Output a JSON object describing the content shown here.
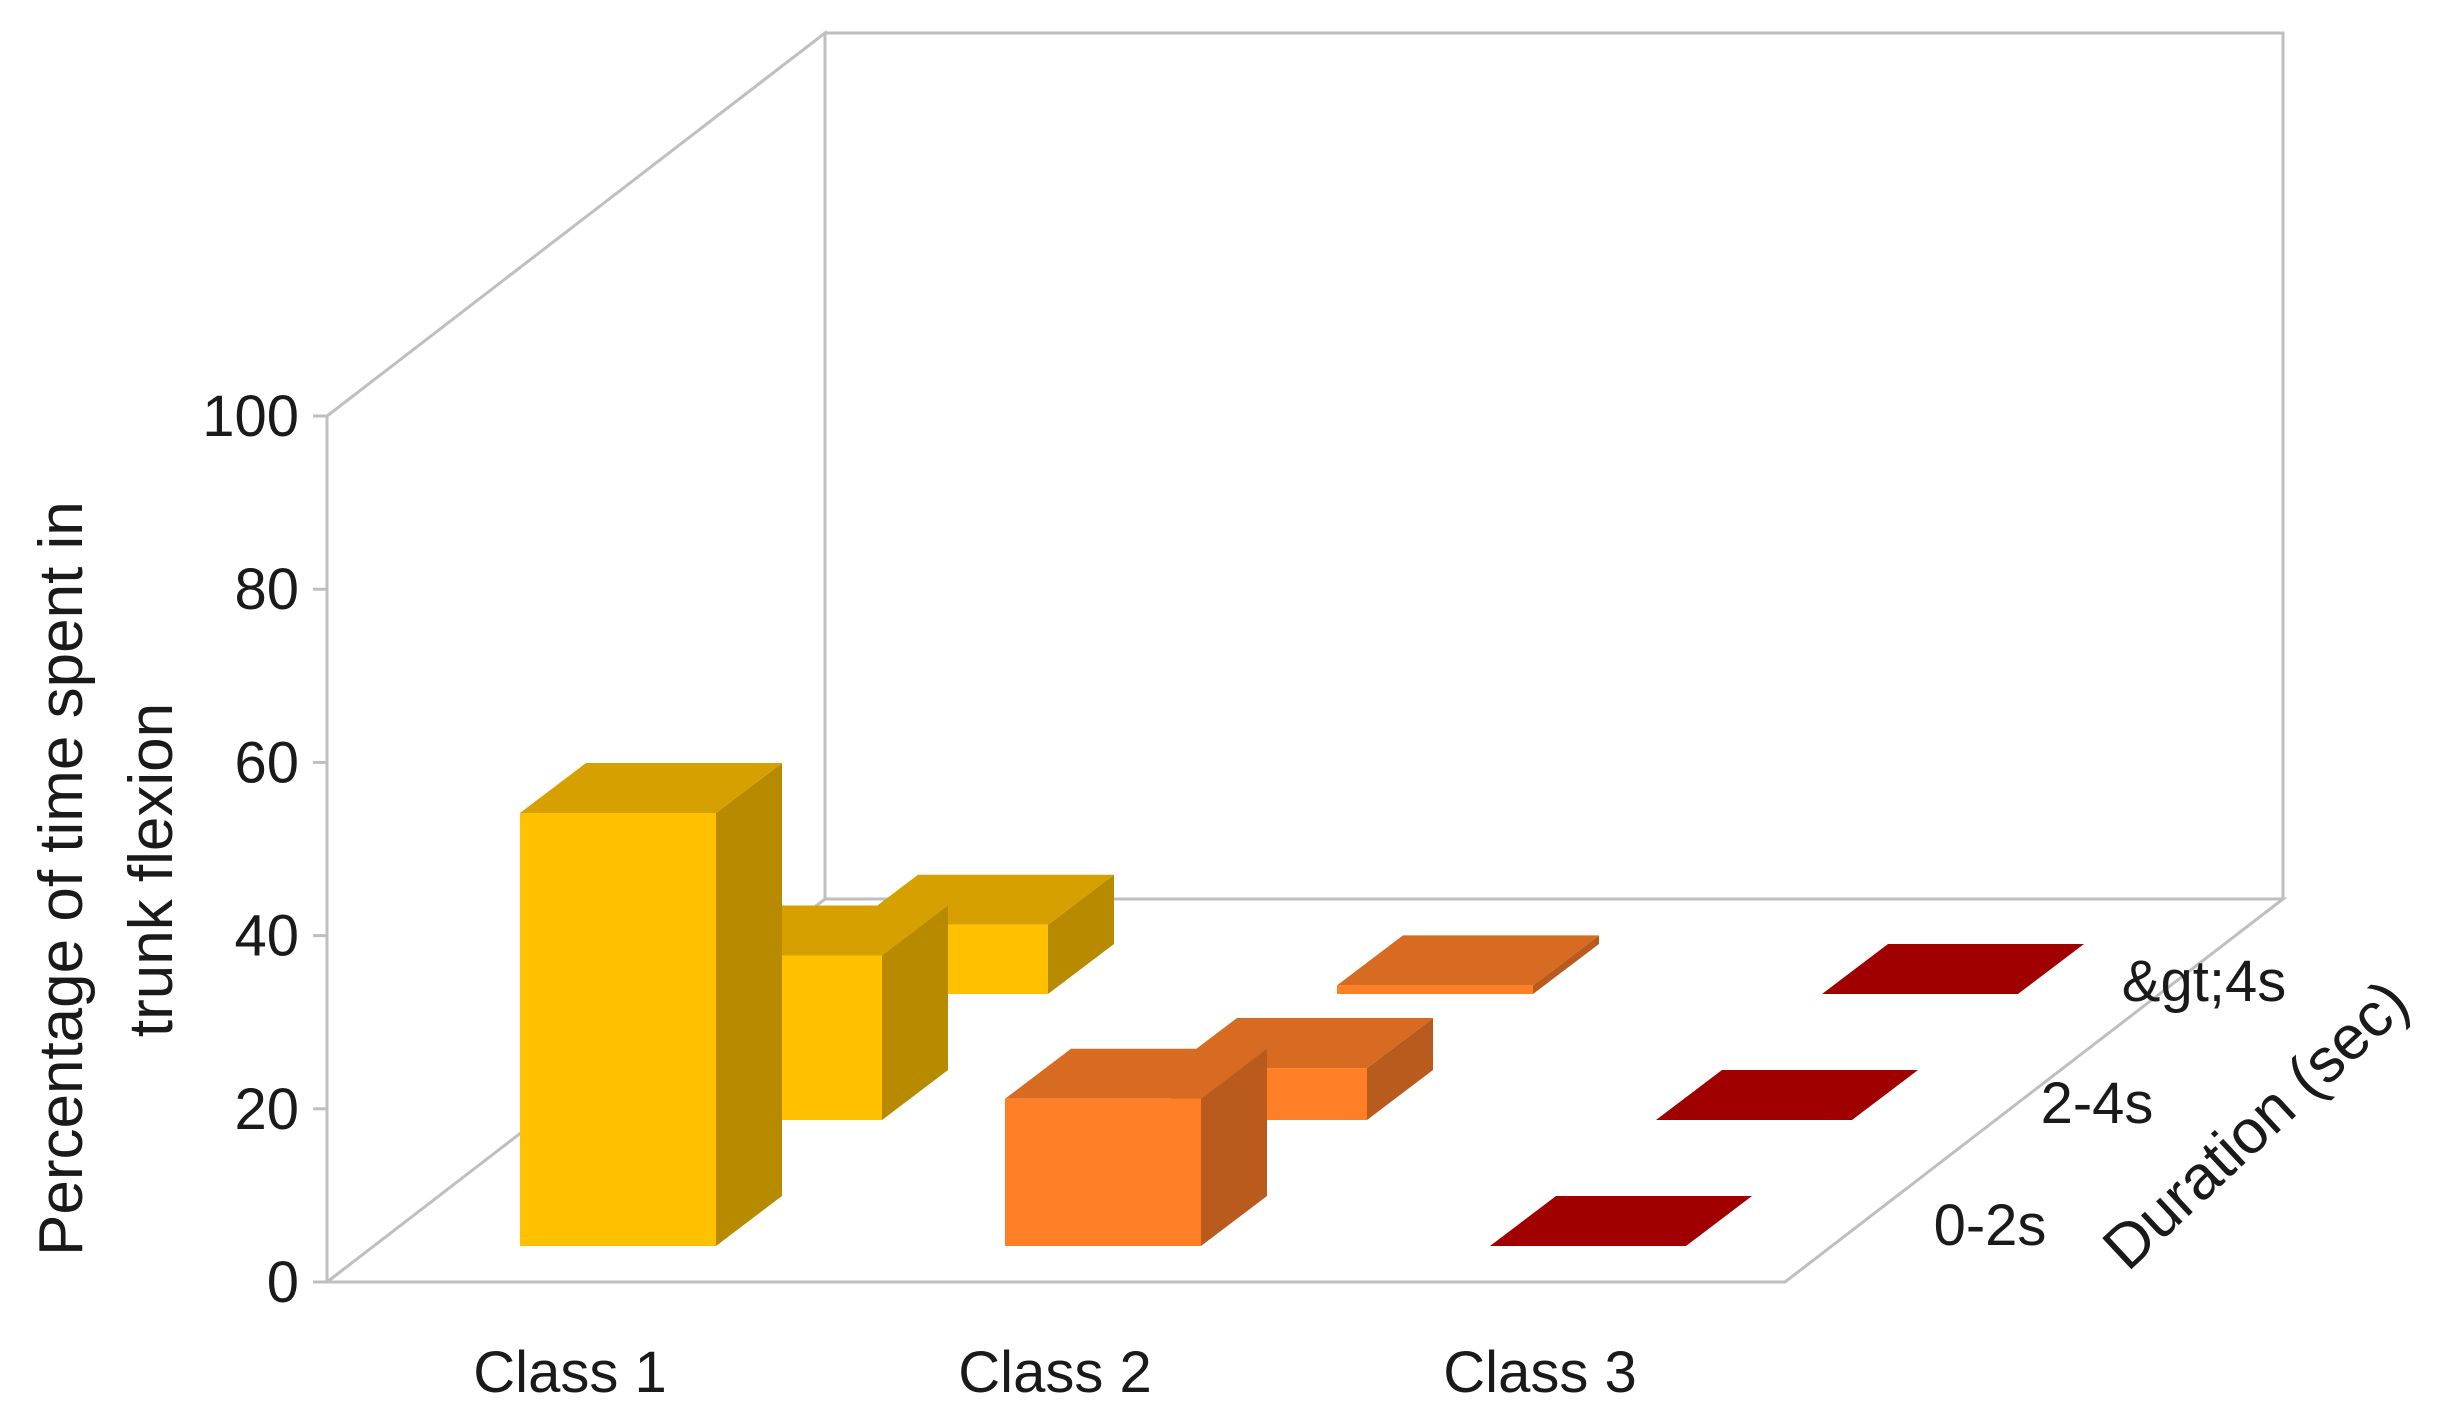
{
  "chart_data": {
    "type": "bar",
    "subtype": "3d-bar",
    "ylabel_lines": [
      "Percentage of time spent in",
      "trunk flexion"
    ],
    "depth_label": "Duration (sec)",
    "categories": [
      "Class 1",
      "Class 2",
      "Class 3"
    ],
    "series": [
      {
        "name": "0-2s",
        "values": [
          50,
          17,
          0
        ],
        "colors": [
          "#FFC000",
          "#FF7F27",
          "#C00000"
        ]
      },
      {
        "name": "2-4s",
        "values": [
          19,
          6,
          0
        ],
        "colors": [
          "#FFC000",
          "#FF7F27",
          "#C00000"
        ]
      },
      {
        "name": "&gt;4s",
        "values": [
          8,
          1,
          0
        ],
        "colors": [
          "#FFC000",
          "#FF7F27",
          "#C00000"
        ]
      }
    ],
    "yticks": [
      0,
      20,
      40,
      60,
      80,
      100
    ],
    "ylim": [
      0,
      100
    ],
    "grid": false,
    "legend": "none"
  }
}
